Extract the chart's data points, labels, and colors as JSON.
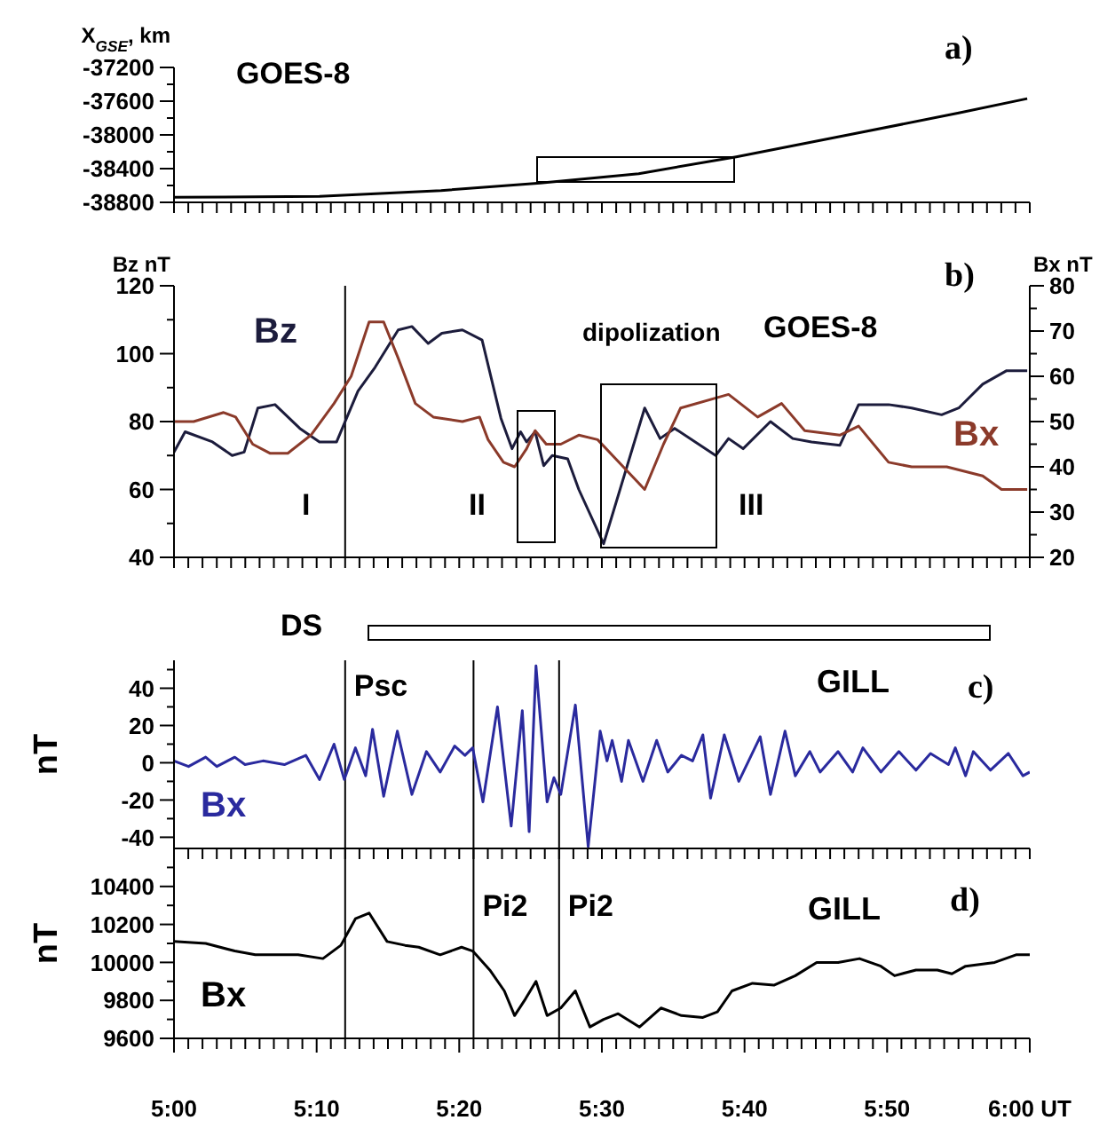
{
  "chart_data": [
    {
      "type": "line",
      "ylabel": "X$_{GSE}$, km",
      "marker": "none",
      "tick_labels": "y",
      "x": [
        5,
        5.17,
        5.312,
        5.428,
        5.543,
        5.657,
        5.793,
        5.917,
        5.997
      ],
      "values": [
        -38740,
        -38730,
        -38660,
        -38570,
        -38460,
        -38260,
        -37990,
        -37740,
        -37570
      ],
      "color": "#000000",
      "xlim": [
        5,
        6
      ],
      "xticks": [
        {
          "value": 5,
          "label": null
        },
        {
          "value": 5.0167,
          "label": null
        },
        {
          "value": 5.0333,
          "label": null
        },
        {
          "value": 5.05,
          "label": null
        },
        {
          "value": 5.0667,
          "label": null
        },
        {
          "value": 5.0833,
          "label": null
        },
        {
          "value": 5.1,
          "label": null
        },
        {
          "value": 5.1167,
          "label": null
        },
        {
          "value": 5.1333,
          "label": null
        },
        {
          "value": 5.15,
          "label": null
        },
        {
          "value": 5.1667,
          "label": null
        },
        {
          "value": 5.1833,
          "label": null
        },
        {
          "value": 5.2,
          "label": null
        },
        {
          "value": 5.2167,
          "label": null
        },
        {
          "value": 5.2333,
          "label": null
        },
        {
          "value": 5.25,
          "label": null
        },
        {
          "value": 5.2667,
          "label": null
        },
        {
          "value": 5.2833,
          "label": null
        },
        {
          "value": 5.3,
          "label": null
        },
        {
          "value": 5.3167,
          "label": null
        },
        {
          "value": 5.3333,
          "label": null
        },
        {
          "value": 5.35,
          "label": null
        },
        {
          "value": 5.3667,
          "label": null
        },
        {
          "value": 5.3833,
          "label": null
        },
        {
          "value": 5.4,
          "label": null
        },
        {
          "value": 5.4167,
          "label": null
        },
        {
          "value": 5.4333,
          "label": null
        },
        {
          "value": 5.45,
          "label": null
        },
        {
          "value": 5.4667,
          "label": null
        },
        {
          "value": 5.4833,
          "label": null
        },
        {
          "value": 5.5,
          "label": null
        },
        {
          "value": 5.5167,
          "label": null
        },
        {
          "value": 5.5333,
          "label": null
        },
        {
          "value": 5.55,
          "label": null
        },
        {
          "value": 5.5667,
          "label": null
        },
        {
          "value": 5.5833,
          "label": null
        },
        {
          "value": 5.6,
          "label": null
        },
        {
          "value": 5.6167,
          "label": null
        },
        {
          "value": 5.6333,
          "label": null
        },
        {
          "value": 5.65,
          "label": null
        },
        {
          "value": 5.6667,
          "label": null
        },
        {
          "value": 5.6833,
          "label": null
        },
        {
          "value": 5.7,
          "label": null
        },
        {
          "value": 5.7167,
          "label": null
        },
        {
          "value": 5.7333,
          "label": null
        },
        {
          "value": 5.75,
          "label": null
        },
        {
          "value": 5.7667,
          "label": null
        },
        {
          "value": 5.7833,
          "label": null
        },
        {
          "value": 5.8,
          "label": null
        },
        {
          "value": 5.8167,
          "label": null
        },
        {
          "value": 5.8333,
          "label": null
        },
        {
          "value": 5.85,
          "label": null
        },
        {
          "value": 5.8667,
          "label": null
        },
        {
          "value": 5.8833,
          "label": null
        },
        {
          "value": 5.9,
          "label": null
        },
        {
          "value": 5.9167,
          "label": null
        },
        {
          "value": 5.9333,
          "label": null
        },
        {
          "value": 5.95,
          "label": null
        },
        {
          "value": 5.9667,
          "label": null
        },
        {
          "value": 5.9833,
          "label": null
        },
        {
          "value": 6,
          "label": null
        }
      ],
      "ylim": [
        -38800,
        -37200
      ],
      "yticks": [
        -38800,
        {
          "value": -38600,
          "label": null
        },
        -38400,
        {
          "value": -38200,
          "label": null
        },
        -38000,
        {
          "value": -37800,
          "label": null
        },
        -37600,
        {
          "value": -37400,
          "label": null
        },
        -37200
      ],
      "annotations": [
        "GOES-8",
        "a)"
      ]
    },
    {
      "type": "line",
      "ylabel": "Bz nT",
      "y2label": "Bx nT",
      "marker": "none",
      "tick_labels": "y",
      "series": [
        {
          "name": "Bz",
          "color": "#1c1c3c",
          "x": [
            5,
            5.013,
            5.045,
            5.068,
            5.082,
            5.098,
            5.118,
            5.147,
            5.17,
            5.19,
            5.215,
            5.235,
            5.262,
            5.278,
            5.297,
            5.313,
            5.337,
            5.36,
            5.382,
            5.395,
            5.405,
            5.412,
            5.422,
            5.432,
            5.442,
            5.46,
            5.473,
            5.502,
            5.55,
            5.568,
            5.585,
            5.633,
            5.648,
            5.665,
            5.697,
            5.723,
            5.745,
            5.778,
            5.8,
            5.835,
            5.862,
            5.897,
            5.917,
            5.945,
            5.973,
            5.997
          ],
          "values": [
            71,
            77,
            74,
            70,
            71,
            84,
            85,
            78,
            74,
            74,
            89,
            96,
            107,
            108,
            103,
            106,
            107,
            104,
            81,
            72,
            77,
            74,
            77,
            67,
            70,
            69,
            60,
            44,
            84,
            75,
            78,
            70,
            75,
            72,
            80,
            75,
            74,
            73,
            85,
            85,
            84,
            82,
            84,
            91,
            95,
            95
          ]
        },
        {
          "name": "Bx",
          "color": "#8b3a2a",
          "axis": "y2",
          "x": [
            5,
            5.023,
            5.058,
            5.072,
            5.092,
            5.112,
            5.133,
            5.16,
            5.187,
            5.207,
            5.228,
            5.245,
            5.262,
            5.282,
            5.303,
            5.337,
            5.357,
            5.367,
            5.385,
            5.398,
            5.412,
            5.422,
            5.435,
            5.452,
            5.473,
            5.495,
            5.55,
            5.572,
            5.592,
            5.648,
            5.682,
            5.71,
            5.737,
            5.778,
            5.8,
            5.835,
            5.862,
            5.903,
            5.945,
            5.967,
            5.997
          ],
          "values": [
            50,
            50,
            52,
            51,
            45,
            43,
            43,
            47,
            54,
            60,
            72,
            72,
            64,
            54,
            51,
            50,
            51,
            46,
            41,
            40,
            44,
            48,
            45,
            45,
            47,
            46,
            35,
            45,
            53,
            56,
            51,
            54,
            48,
            47,
            49,
            41,
            40,
            40,
            38,
            35,
            35
          ]
        }
      ],
      "xlim": [
        5,
        6
      ],
      "xticks": [
        {
          "value": 5,
          "label": null
        },
        {
          "value": 5.0167,
          "label": null
        },
        {
          "value": 5.0333,
          "label": null
        },
        {
          "value": 5.05,
          "label": null
        },
        {
          "value": 5.0667,
          "label": null
        },
        {
          "value": 5.0833,
          "label": null
        },
        {
          "value": 5.1,
          "label": null
        },
        {
          "value": 5.1167,
          "label": null
        },
        {
          "value": 5.1333,
          "label": null
        },
        {
          "value": 5.15,
          "label": null
        },
        {
          "value": 5.1667,
          "label": null
        },
        {
          "value": 5.1833,
          "label": null
        },
        {
          "value": 5.2,
          "label": null
        },
        {
          "value": 5.2167,
          "label": null
        },
        {
          "value": 5.2333,
          "label": null
        },
        {
          "value": 5.25,
          "label": null
        },
        {
          "value": 5.2667,
          "label": null
        },
        {
          "value": 5.2833,
          "label": null
        },
        {
          "value": 5.3,
          "label": null
        },
        {
          "value": 5.3167,
          "label": null
        },
        {
          "value": 5.3333,
          "label": null
        },
        {
          "value": 5.35,
          "label": null
        },
        {
          "value": 5.3667,
          "label": null
        },
        {
          "value": 5.3833,
          "label": null
        },
        {
          "value": 5.4,
          "label": null
        },
        {
          "value": 5.4167,
          "label": null
        },
        {
          "value": 5.4333,
          "label": null
        },
        {
          "value": 5.45,
          "label": null
        },
        {
          "value": 5.4667,
          "label": null
        },
        {
          "value": 5.4833,
          "label": null
        },
        {
          "value": 5.5,
          "label": null
        },
        {
          "value": 5.5167,
          "label": null
        },
        {
          "value": 5.5333,
          "label": null
        },
        {
          "value": 5.55,
          "label": null
        },
        {
          "value": 5.5667,
          "label": null
        },
        {
          "value": 5.5833,
          "label": null
        },
        {
          "value": 5.6,
          "label": null
        },
        {
          "value": 5.6167,
          "label": null
        },
        {
          "value": 5.6333,
          "label": null
        },
        {
          "value": 5.65,
          "label": null
        },
        {
          "value": 5.6667,
          "label": null
        },
        {
          "value": 5.6833,
          "label": null
        },
        {
          "value": 5.7,
          "label": null
        },
        {
          "value": 5.7167,
          "label": null
        },
        {
          "value": 5.7333,
          "label": null
        },
        {
          "value": 5.75,
          "label": null
        },
        {
          "value": 5.7667,
          "label": null
        },
        {
          "value": 5.7833,
          "label": null
        },
        {
          "value": 5.8,
          "label": null
        },
        {
          "value": 5.8167,
          "label": null
        },
        {
          "value": 5.8333,
          "label": null
        },
        {
          "value": 5.85,
          "label": null
        },
        {
          "value": 5.8667,
          "label": null
        },
        {
          "value": 5.8833,
          "label": null
        },
        {
          "value": 5.9,
          "label": null
        },
        {
          "value": 5.9167,
          "label": null
        },
        {
          "value": 5.9333,
          "label": null
        },
        {
          "value": 5.95,
          "label": null
        },
        {
          "value": 5.9667,
          "label": null
        },
        {
          "value": 5.9833,
          "label": null
        },
        {
          "value": 6,
          "label": null
        }
      ],
      "ylim": [
        40,
        120
      ],
      "yticks": [
        40,
        {
          "value": 50,
          "label": null
        },
        60,
        {
          "value": 70,
          "label": null
        },
        80,
        {
          "value": 90,
          "label": null
        },
        100,
        {
          "value": 110,
          "label": null
        },
        120
      ],
      "y2lim": [
        20,
        80
      ],
      "y2ticks": [
        20,
        {
          "value": 25,
          "label": null
        },
        30,
        {
          "value": 35,
          "label": null
        },
        40,
        {
          "value": 45,
          "label": null
        },
        50,
        {
          "value": 55,
          "label": null
        },
        60,
        {
          "value": 65,
          "label": null
        },
        70,
        {
          "value": 75,
          "label": null
        },
        80
      ],
      "ref_lines": [
        {
          "axis": "x",
          "value": 5.2,
          "color": "#000000"
        }
      ],
      "annotations": [
        "GOES-8",
        "b)",
        "I",
        "II",
        "III",
        "dipolization"
      ]
    },
    {
      "type": "line",
      "ylabel": "nT",
      "marker": "none",
      "tick_labels": "y",
      "series": [
        {
          "name": "Bx",
          "color": "#2a2a9e",
          "x": [
            5,
            5.017,
            5.037,
            5.05,
            5.071,
            5.083,
            5.104,
            5.129,
            5.154,
            5.17,
            5.187,
            5.199,
            5.212,
            5.224,
            5.232,
            5.245,
            5.261,
            5.278,
            5.295,
            5.311,
            5.328,
            5.34,
            5.349,
            5.361,
            5.378,
            5.394,
            5.407,
            5.415,
            5.423,
            5.436,
            5.444,
            5.452,
            5.469,
            5.484,
            5.498,
            5.506,
            5.512,
            5.523,
            5.531,
            5.548,
            5.564,
            5.577,
            5.593,
            5.606,
            5.618,
            5.627,
            5.643,
            5.66,
            5.685,
            5.697,
            5.714,
            5.726,
            5.743,
            5.755,
            5.776,
            5.793,
            5.805,
            5.826,
            5.847,
            5.867,
            5.884,
            5.905,
            5.913,
            5.925,
            5.934,
            5.954,
            5.975,
            5.992,
            6
          ],
          "values": [
            1,
            -2,
            3,
            -2,
            3,
            -1,
            1,
            -1,
            4,
            -9,
            10,
            -9,
            8,
            -7,
            18,
            -18,
            17,
            -17,
            6,
            -5,
            9,
            4,
            8,
            -21,
            30,
            -34,
            28,
            -37,
            52,
            -21,
            -8,
            -17,
            31,
            -45,
            17,
            1,
            12,
            -10,
            12,
            -10,
            12,
            -5,
            4,
            1,
            15,
            -19,
            15,
            -10,
            14,
            -17,
            17,
            -7,
            6,
            -5,
            6,
            -5,
            8,
            -5,
            6,
            -4,
            5,
            -1,
            8,
            -7,
            6,
            -4,
            5,
            -7,
            -5
          ]
        }
      ],
      "xlim": [
        5,
        6
      ],
      "xticks": [
        {
          "value": 5,
          "label": null
        },
        {
          "value": 5.0167,
          "label": null
        },
        {
          "value": 5.0333,
          "label": null
        },
        {
          "value": 5.05,
          "label": null
        },
        {
          "value": 5.0667,
          "label": null
        },
        {
          "value": 5.0833,
          "label": null
        },
        {
          "value": 5.1,
          "label": null
        },
        {
          "value": 5.1167,
          "label": null
        },
        {
          "value": 5.1333,
          "label": null
        },
        {
          "value": 5.15,
          "label": null
        },
        {
          "value": 5.1667,
          "label": null
        },
        {
          "value": 5.1833,
          "label": null
        },
        {
          "value": 5.2,
          "label": null
        },
        {
          "value": 5.2167,
          "label": null
        },
        {
          "value": 5.2333,
          "label": null
        },
        {
          "value": 5.25,
          "label": null
        },
        {
          "value": 5.2667,
          "label": null
        },
        {
          "value": 5.2833,
          "label": null
        },
        {
          "value": 5.3,
          "label": null
        },
        {
          "value": 5.3167,
          "label": null
        },
        {
          "value": 5.3333,
          "label": null
        },
        {
          "value": 5.35,
          "label": null
        },
        {
          "value": 5.3667,
          "label": null
        },
        {
          "value": 5.3833,
          "label": null
        },
        {
          "value": 5.4,
          "label": null
        },
        {
          "value": 5.4167,
          "label": null
        },
        {
          "value": 5.4333,
          "label": null
        },
        {
          "value": 5.45,
          "label": null
        },
        {
          "value": 5.4667,
          "label": null
        },
        {
          "value": 5.4833,
          "label": null
        },
        {
          "value": 5.5,
          "label": null
        },
        {
          "value": 5.5167,
          "label": null
        },
        {
          "value": 5.5333,
          "label": null
        },
        {
          "value": 5.55,
          "label": null
        },
        {
          "value": 5.5667,
          "label": null
        },
        {
          "value": 5.5833,
          "label": null
        },
        {
          "value": 5.6,
          "label": null
        },
        {
          "value": 5.6167,
          "label": null
        },
        {
          "value": 5.6333,
          "label": null
        },
        {
          "value": 5.65,
          "label": null
        },
        {
          "value": 5.6667,
          "label": null
        },
        {
          "value": 5.6833,
          "label": null
        },
        {
          "value": 5.7,
          "label": null
        },
        {
          "value": 5.7167,
          "label": null
        },
        {
          "value": 5.7333,
          "label": null
        },
        {
          "value": 5.75,
          "label": null
        },
        {
          "value": 5.7667,
          "label": null
        },
        {
          "value": 5.7833,
          "label": null
        },
        {
          "value": 5.8,
          "label": null
        },
        {
          "value": 5.8167,
          "label": null
        },
        {
          "value": 5.8333,
          "label": null
        },
        {
          "value": 5.85,
          "label": null
        },
        {
          "value": 5.8667,
          "label": null
        },
        {
          "value": 5.8833,
          "label": null
        },
        {
          "value": 5.9,
          "label": null
        },
        {
          "value": 5.9167,
          "label": null
        },
        {
          "value": 5.9333,
          "label": null
        },
        {
          "value": 5.95,
          "label": null
        },
        {
          "value": 5.9667,
          "label": null
        },
        {
          "value": 5.9833,
          "label": null
        },
        {
          "value": 6,
          "label": null
        }
      ],
      "ylim": [
        -46,
        55
      ],
      "yticks": [
        -40,
        {
          "value": -30,
          "label": null
        },
        -20,
        {
          "value": -10,
          "label": null
        },
        0,
        {
          "value": 10,
          "label": null
        },
        20,
        {
          "value": 30,
          "label": null
        },
        40,
        {
          "value": 50,
          "label": null
        }
      ],
      "ref_lines": [
        {
          "axis": "x",
          "value": 5.2,
          "label": "Psc",
          "color": "#000000"
        },
        {
          "axis": "x",
          "value": 5.35,
          "color": "#000000"
        },
        {
          "axis": "x",
          "value": 5.45,
          "color": "#000000"
        }
      ],
      "annotations": [
        "GILL",
        "c)",
        "DS"
      ]
    },
    {
      "type": "line",
      "ylabel": "nT",
      "marker": "none",
      "series": [
        {
          "name": "Bx",
          "color": "#000000",
          "x": [
            5,
            5.037,
            5.071,
            5.095,
            5.145,
            5.174,
            5.195,
            5.212,
            5.228,
            5.249,
            5.27,
            5.286,
            5.311,
            5.336,
            5.349,
            5.353,
            5.369,
            5.386,
            5.398,
            5.411,
            5.423,
            5.436,
            5.452,
            5.469,
            5.486,
            5.502,
            5.519,
            5.544,
            5.569,
            5.593,
            5.618,
            5.635,
            5.652,
            5.676,
            5.701,
            5.726,
            5.751,
            5.776,
            5.801,
            5.826,
            5.842,
            5.867,
            5.892,
            5.909,
            5.925,
            5.959,
            5.984,
            6
          ],
          "values": [
            10110,
            10100,
            10060,
            10040,
            10040,
            10020,
            10090,
            10230,
            10260,
            10110,
            10090,
            10080,
            10040,
            10080,
            10060,
            10040,
            9960,
            9850,
            9720,
            9810,
            9900,
            9720,
            9760,
            9850,
            9660,
            9700,
            9730,
            9660,
            9760,
            9720,
            9710,
            9740,
            9850,
            9890,
            9880,
            9930,
            10000,
            10000,
            10020,
            9980,
            9930,
            9960,
            9960,
            9940,
            9980,
            10000,
            10040,
            10040
          ]
        }
      ],
      "xlim": [
        5,
        6
      ],
      "xticks": [
        {
          "value": 5,
          "label": "5:00"
        },
        {
          "value": 5.0167,
          "label": null
        },
        {
          "value": 5.0333,
          "label": null
        },
        {
          "value": 5.05,
          "label": null
        },
        {
          "value": 5.0667,
          "label": null
        },
        {
          "value": 5.0833,
          "label": null
        },
        {
          "value": 5.1,
          "label": null
        },
        {
          "value": 5.1167,
          "label": null
        },
        {
          "value": 5.1333,
          "label": null
        },
        {
          "value": 5.15,
          "label": null
        },
        {
          "value": 5.1667,
          "label": "5:10"
        },
        {
          "value": 5.1833,
          "label": null
        },
        {
          "value": 5.2,
          "label": null
        },
        {
          "value": 5.2167,
          "label": null
        },
        {
          "value": 5.2333,
          "label": null
        },
        {
          "value": 5.25,
          "label": null
        },
        {
          "value": 5.2667,
          "label": null
        },
        {
          "value": 5.2833,
          "label": null
        },
        {
          "value": 5.3,
          "label": null
        },
        {
          "value": 5.3167,
          "label": null
        },
        {
          "value": 5.3333,
          "label": "5:20"
        },
        {
          "value": 5.35,
          "label": null
        },
        {
          "value": 5.3667,
          "label": null
        },
        {
          "value": 5.3833,
          "label": null
        },
        {
          "value": 5.4,
          "label": null
        },
        {
          "value": 5.4167,
          "label": null
        },
        {
          "value": 5.4333,
          "label": null
        },
        {
          "value": 5.45,
          "label": null
        },
        {
          "value": 5.4667,
          "label": null
        },
        {
          "value": 5.4833,
          "label": null
        },
        {
          "value": 5.5,
          "label": "5:30"
        },
        {
          "value": 5.5167,
          "label": null
        },
        {
          "value": 5.5333,
          "label": null
        },
        {
          "value": 5.55,
          "label": null
        },
        {
          "value": 5.5667,
          "label": null
        },
        {
          "value": 5.5833,
          "label": null
        },
        {
          "value": 5.6,
          "label": null
        },
        {
          "value": 5.6167,
          "label": null
        },
        {
          "value": 5.6333,
          "label": null
        },
        {
          "value": 5.65,
          "label": null
        },
        {
          "value": 5.6667,
          "label": "5:40"
        },
        {
          "value": 5.6833,
          "label": null
        },
        {
          "value": 5.7,
          "label": null
        },
        {
          "value": 5.7167,
          "label": null
        },
        {
          "value": 5.7333,
          "label": null
        },
        {
          "value": 5.75,
          "label": null
        },
        {
          "value": 5.7667,
          "label": null
        },
        {
          "value": 5.7833,
          "label": null
        },
        {
          "value": 5.8,
          "label": null
        },
        {
          "value": 5.8167,
          "label": null
        },
        {
          "value": 5.8333,
          "label": "5:50"
        },
        {
          "value": 5.85,
          "label": null
        },
        {
          "value": 5.8667,
          "label": null
        },
        {
          "value": 5.8833,
          "label": null
        },
        {
          "value": 5.9,
          "label": null
        },
        {
          "value": 5.9167,
          "label": null
        },
        {
          "value": 5.9333,
          "label": null
        },
        {
          "value": 5.95,
          "label": null
        },
        {
          "value": 5.9667,
          "label": null
        },
        {
          "value": 5.9833,
          "label": null
        },
        {
          "value": 6,
          "label": "6:00 UT"
        }
      ],
      "ylim": [
        9600,
        10600
      ],
      "yticks": [
        9600,
        {
          "value": 9700,
          "label": null
        },
        9800,
        {
          "value": 9900,
          "label": null
        },
        10000,
        {
          "value": 10100,
          "label": null
        },
        10200,
        {
          "value": 10300,
          "label": null
        },
        10400,
        {
          "value": 10500,
          "label": null
        }
      ],
      "ref_lines": [
        {
          "axis": "x",
          "value": 5.2,
          "color": "#000000"
        },
        {
          "axis": "x",
          "value": 5.35,
          "label": "Pi2",
          "color": "#000000"
        },
        {
          "axis": "x",
          "value": 5.45,
          "label": "Pi2",
          "color": "#000000"
        }
      ],
      "annotations": [
        "GILL",
        "d)"
      ]
    }
  ]
}
